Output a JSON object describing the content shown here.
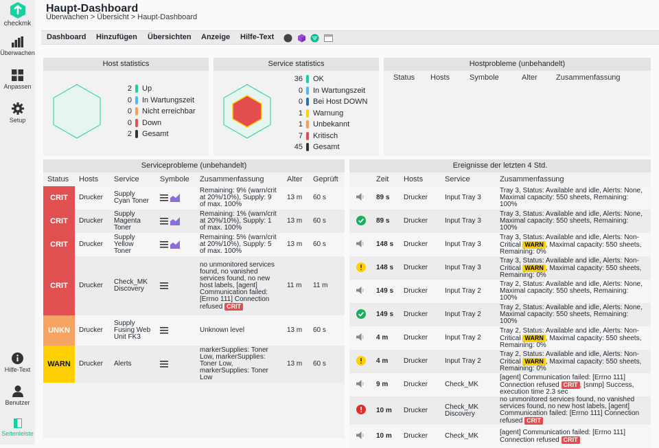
{
  "sidebar": {
    "logo": "checkmk",
    "items": [
      {
        "label": "Überwachen"
      },
      {
        "label": "Anpassen"
      },
      {
        "label": "Setup"
      }
    ],
    "bottom": [
      {
        "label": "Hilfe-Text"
      },
      {
        "label": "Benutzer"
      },
      {
        "label": "Seitenleiste"
      }
    ]
  },
  "page": {
    "title": "Haupt-Dashboard",
    "breadcrumb": "Überwachen > Übersicht > Haupt-Dashboard"
  },
  "menu": [
    "Dashboard",
    "Hinzufügen",
    "Übersichten",
    "Anzeige",
    "Hilfe-Text"
  ],
  "host_stats": {
    "title": "Host statistics",
    "rows": [
      {
        "count": "2",
        "label": "Up",
        "color": "#15d1a0"
      },
      {
        "count": "0",
        "label": "In Wartungszeit",
        "color": "#4cbbf5"
      },
      {
        "count": "0",
        "label": "Nicht erreichbar",
        "color": "#f5a05a"
      },
      {
        "count": "0",
        "label": "Down",
        "color": "#e34d4d"
      },
      {
        "count": "2",
        "label": "Gesamt",
        "color": "#333333"
      }
    ]
  },
  "service_stats": {
    "title": "Service statistics",
    "rows": [
      {
        "count": "36",
        "label": "OK",
        "color": "#15d1a0"
      },
      {
        "count": "0",
        "label": "In Wartungszeit",
        "color": "#4cbbf5"
      },
      {
        "count": "0",
        "label": "Bei Host DOWN",
        "color": "#2a6db5"
      },
      {
        "count": "1",
        "label": "Warnung",
        "color": "#ffd000"
      },
      {
        "count": "1",
        "label": "Unbekannt",
        "color": "#f5a05a"
      },
      {
        "count": "7",
        "label": "Kritisch",
        "color": "#e34d4d"
      },
      {
        "count": "45",
        "label": "Gesamt",
        "color": "#333333"
      }
    ]
  },
  "host_problems": {
    "title": "Hostprobleme (unbehandelt)",
    "headers": [
      "Status",
      "Hosts",
      "Symbole",
      "Alter",
      "Zusammenfassung"
    ]
  },
  "service_problems": {
    "title": "Serviceprobleme (unbehandelt)",
    "headers": [
      "Status",
      "Hosts",
      "Service",
      "Symbole",
      "Zusammenfassung",
      "Alter",
      "Geprüft"
    ],
    "rows": [
      {
        "state": "CRIT",
        "host": "Drucker",
        "service": "Supply Cyan Toner",
        "summary": "Remaining: 9% (warn/crit at 20%/10%), Supply: 9 of max. 100%",
        "tag": "",
        "age": "13 m",
        "checked": "60 s",
        "graph": true
      },
      {
        "state": "CRIT",
        "host": "Drucker",
        "service": "Supply Magenta Toner",
        "summary": "Remaining: 1% (warn/crit at 20%/10%), Supply: 1 of max. 100%",
        "tag": "",
        "age": "13 m",
        "checked": "60 s",
        "graph": true
      },
      {
        "state": "CRIT",
        "host": "Drucker",
        "service": "Supply Yellow Toner",
        "summary": "Remaining: 5% (warn/crit at 20%/10%), Supply: 5 of max. 100%",
        "tag": "",
        "age": "13 m",
        "checked": "60 s",
        "graph": true
      },
      {
        "state": "CRIT",
        "host": "Drucker",
        "service": "Check_MK Discovery",
        "summary": "no unmonitored services found, no vanished services found, no new host labels, [agent] Communication failed: [Errno 111] Connection refused",
        "tag": "CRIT",
        "age": "11 m",
        "checked": "11 m",
        "graph": false
      },
      {
        "state": "UNKN",
        "host": "Drucker",
        "service": "Supply Fusing Web Unit FK3",
        "summary": "Unknown level",
        "tag": "",
        "age": "13 m",
        "checked": "60 s",
        "graph": false
      },
      {
        "state": "WARN",
        "host": "Drucker",
        "service": "Alerts",
        "summary": "markerSupplies: Toner Low, markerSupplies: Toner Low, markerSupplies: Toner Low",
        "tag": "",
        "age": "13 m",
        "checked": "60 s",
        "graph": false
      }
    ]
  },
  "events": {
    "title": "Ereignisse der letzten 4 Std.",
    "headers": [
      "",
      "Zeit",
      "Hosts",
      "Service",
      "Zusammenfassung"
    ],
    "rows": [
      {
        "icon": "sound",
        "time": "89 s",
        "host": "Drucker",
        "service": "Input Tray 3",
        "pre": "Tray 3, Status: Available and idle, Alerts: None, Maximal capacity: 550 sheets, Remaining: 100%",
        "tag": "",
        "tagtype": "",
        "post": ""
      },
      {
        "icon": "ok",
        "time": "89 s",
        "host": "Drucker",
        "service": "Input Tray 3",
        "pre": "Tray 3, Status: Available and idle, Alerts: None, Maximal capacity: 550 sheets, Remaining: 100%",
        "tag": "",
        "tagtype": "",
        "post": ""
      },
      {
        "icon": "sound",
        "time": "148 s",
        "host": "Drucker",
        "service": "Input Tray 3",
        "pre": "Tray 3, Status: Available and idle, Alerts: Non-Critical ",
        "tag": "WARN",
        "tagtype": "w",
        "post": ", Maximal capacity: 550 sheets, Remaining: 0%"
      },
      {
        "icon": "warn",
        "time": "148 s",
        "host": "Drucker",
        "service": "Input Tray 3",
        "pre": "Tray 3, Status: Available and idle, Alerts: Non-Critical ",
        "tag": "WARN",
        "tagtype": "w",
        "post": ", Maximal capacity: 550 sheets, Remaining: 0%"
      },
      {
        "icon": "sound",
        "time": "149 s",
        "host": "Drucker",
        "service": "Input Tray 2",
        "pre": "Tray 2, Status: Available and idle, Alerts: None, Maximal capacity: 550 sheets, Remaining: 100%",
        "tag": "",
        "tagtype": "",
        "post": ""
      },
      {
        "icon": "ok",
        "time": "149 s",
        "host": "Drucker",
        "service": "Input Tray 2",
        "pre": "Tray 2, Status: Available and idle, Alerts: None, Maximal capacity: 550 sheets, Remaining: 100%",
        "tag": "",
        "tagtype": "",
        "post": ""
      },
      {
        "icon": "sound",
        "time": "4 m",
        "host": "Drucker",
        "service": "Input Tray 2",
        "pre": "Tray 2, Status: Available and idle, Alerts: Non-Critical ",
        "tag": "WARN",
        "tagtype": "w",
        "post": ", Maximal capacity: 550 sheets, Remaining: 0%"
      },
      {
        "icon": "warn",
        "time": "4 m",
        "host": "Drucker",
        "service": "Input Tray 2",
        "pre": "Tray 2, Status: Available and idle, Alerts: Non-Critical ",
        "tag": "WARN",
        "tagtype": "w",
        "post": ", Maximal capacity: 550 sheets, Remaining: 0%"
      },
      {
        "icon": "sound",
        "time": "9 m",
        "host": "Drucker",
        "service": "Check_MK",
        "pre": "[agent] Communication failed: [Errno 111] Connection refused ",
        "tag": "CRIT",
        "tagtype": "c",
        "post": ", [snmp] Success, execution time 2.3 sec"
      },
      {
        "icon": "crit",
        "time": "10 m",
        "host": "Drucker",
        "service": "Check_MK Discovery",
        "pre": "no unmonitored services found, no vanished services found, no new host labels, [agent] Communication failed: [Errno 111] Connection refused ",
        "tag": "CRIT",
        "tagtype": "c",
        "post": ""
      },
      {
        "icon": "sound",
        "time": "10 m",
        "host": "Drucker",
        "service": "Check_MK",
        "pre": "[agent] Communication failed: [Errno 111] Connection refused ",
        "tag": "CRIT",
        "tagtype": "c",
        "post": ""
      }
    ]
  }
}
